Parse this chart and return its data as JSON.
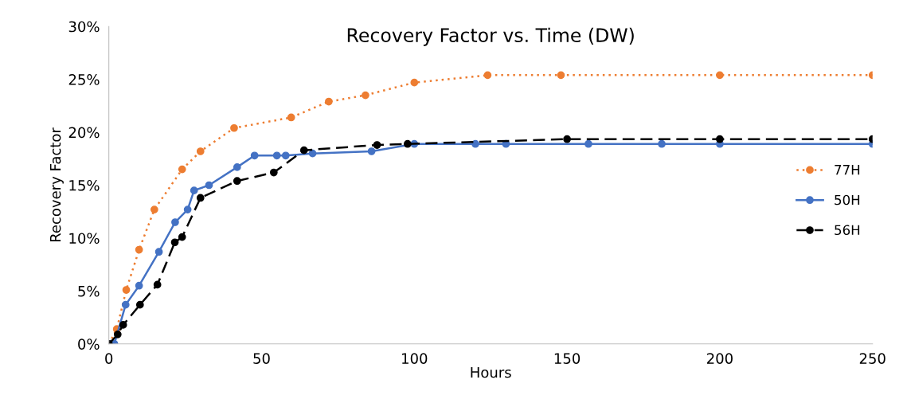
{
  "chart_data": {
    "type": "line",
    "title": "Recovery Factor vs. Time (DW)",
    "xlabel": "Hours",
    "ylabel": "Recovery Factor",
    "xlim": [
      0,
      250
    ],
    "xticks": [
      0,
      50,
      100,
      150,
      200,
      250
    ],
    "ylim": [
      0,
      30
    ],
    "yticks": [
      {
        "value": 0,
        "label": "0%"
      },
      {
        "value": 5,
        "label": "5%"
      },
      {
        "value": 10,
        "label": "10%"
      },
      {
        "value": 15,
        "label": "15%"
      },
      {
        "value": 20,
        "label": "20%"
      },
      {
        "value": 25,
        "label": "25%"
      },
      {
        "value": 30,
        "label": "30%"
      }
    ],
    "grid": false,
    "legend": "right",
    "marker": "circle",
    "series": [
      {
        "name": "77H",
        "color": "#ed7d31",
        "line_style": "dotted",
        "x": [
          0,
          2.6,
          5.7,
          9.9,
          14.9,
          24,
          30,
          41,
          59.7,
          72,
          84,
          100,
          124,
          148,
          200,
          250
        ],
        "values": [
          0,
          1.4,
          5.1,
          8.9,
          12.7,
          16.5,
          18.2,
          20.4,
          21.4,
          22.9,
          23.5,
          24.7,
          25.4,
          25.4,
          25.4,
          25.4
        ]
      },
      {
        "name": "50H",
        "color": "#4472c4",
        "line_style": "solid",
        "x": [
          0,
          1.8,
          5.5,
          9.9,
          16.4,
          21.7,
          25.8,
          27.9,
          32.8,
          42,
          47.7,
          55,
          57.9,
          66.7,
          86,
          100,
          120,
          130,
          157,
          181,
          200,
          250
        ],
        "values": [
          0,
          0,
          3.7,
          5.5,
          8.7,
          11.5,
          12.7,
          14.5,
          15.0,
          16.7,
          17.8,
          17.8,
          17.8,
          18.0,
          18.2,
          18.9,
          18.9,
          18.9,
          18.9,
          18.9,
          18.9,
          18.9
        ]
      },
      {
        "name": "56H",
        "color": "#000000",
        "line_style": "dashed",
        "x": [
          0,
          2.9,
          4.7,
          10.2,
          15.9,
          21.6,
          24,
          30,
          42,
          54,
          63.9,
          87.8,
          97.8,
          150,
          200,
          250
        ],
        "values": [
          0,
          0.9,
          1.8,
          3.7,
          5.6,
          9.6,
          10.1,
          13.8,
          15.4,
          16.2,
          18.3,
          18.8,
          18.9,
          19.35,
          19.35,
          19.35
        ]
      }
    ]
  }
}
